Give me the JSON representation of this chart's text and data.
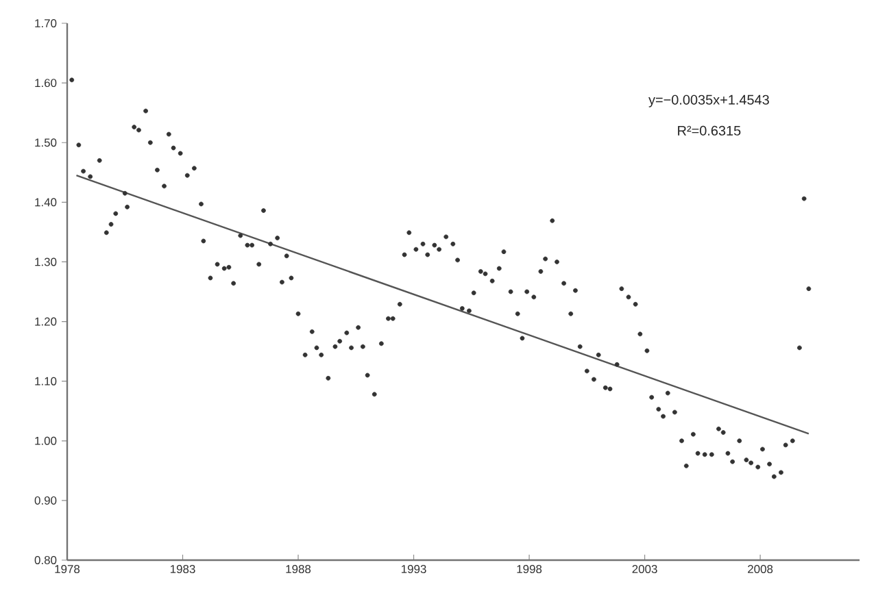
{
  "chart_data": {
    "type": "scatter",
    "xlim": [
      1978,
      2012.3
    ],
    "ylim": [
      0.8,
      1.7
    ],
    "xticks": [
      1978,
      1983,
      1988,
      1993,
      1998,
      2003,
      2008
    ],
    "yticks": [
      {
        "value": 0.8,
        "label": "0.80"
      },
      {
        "value": 0.9,
        "label": "0.90"
      },
      {
        "value": 1.0,
        "label": "1.00"
      },
      {
        "value": 1.1,
        "label": "1.10"
      },
      {
        "value": 1.2,
        "label": "1.20"
      },
      {
        "value": 1.3,
        "label": "1.30"
      },
      {
        "value": 1.4,
        "label": "1.40"
      },
      {
        "value": 1.5,
        "label": "1.50"
      },
      {
        "value": 1.6,
        "label": "1.60"
      },
      {
        "value": 1.7,
        "label": "1.70"
      }
    ],
    "grid": false,
    "annotations": [
      "y=−0.0035x+1.4543",
      "R²=0.6315"
    ],
    "series": [
      {
        "marker": "circle",
        "color": "#333333",
        "x": [
          1978.2,
          1978.5,
          1978.7,
          1979.0,
          1979.4,
          1979.7,
          1979.9,
          1980.1,
          1980.5,
          1980.6,
          1980.9,
          1981.1,
          1981.4,
          1981.6,
          1981.9,
          1982.2,
          1982.4,
          1982.6,
          1982.9,
          1983.2,
          1983.5,
          1983.8,
          1983.9,
          1984.2,
          1984.5,
          1984.8,
          1985.0,
          1985.2,
          1985.5,
          1985.8,
          1986.0,
          1986.3,
          1986.5,
          1986.8,
          1987.1,
          1987.3,
          1987.5,
          1987.7,
          1988.0,
          1988.3,
          1988.6,
          1988.8,
          1989.0,
          1989.3,
          1989.6,
          1989.8,
          1990.1,
          1990.3,
          1990.6,
          1990.8,
          1991.0,
          1991.3,
          1991.6,
          1991.9,
          1992.1,
          1992.4,
          1992.6,
          1992.8,
          1993.1,
          1993.4,
          1993.6,
          1993.9,
          1994.1,
          1994.4,
          1994.7,
          1994.9,
          1995.1,
          1995.4,
          1995.6,
          1995.9,
          1996.1,
          1996.4,
          1996.7,
          1996.9,
          1997.2,
          1997.5,
          1997.7,
          1997.9,
          1998.2,
          1998.5,
          1998.7,
          1999.0,
          1999.2,
          1999.5,
          1999.8,
          2000.0,
          2000.2,
          2000.5,
          2000.8,
          2001.0,
          2001.3,
          2001.5,
          2001.8,
          2002.0,
          2002.3,
          2002.6,
          2002.8,
          2003.1,
          2003.3,
          2003.6,
          2003.8,
          2004.0,
          2004.3,
          2004.6,
          2004.8,
          2005.1,
          2005.3,
          2005.6,
          2005.9,
          2006.2,
          2006.4,
          2006.6,
          2006.8,
          2007.1,
          2007.4,
          2007.6,
          2007.9,
          2008.1,
          2008.4,
          2008.6,
          2008.9,
          2009.1,
          2009.4,
          2009.7,
          2009.9,
          2010.1
        ],
        "values": [
          1.605,
          1.496,
          1.452,
          1.443,
          1.47,
          1.349,
          1.363,
          1.381,
          1.415,
          1.392,
          1.526,
          1.521,
          1.553,
          1.5,
          1.454,
          1.427,
          1.514,
          1.491,
          1.482,
          1.445,
          1.457,
          1.397,
          1.335,
          1.273,
          1.296,
          1.289,
          1.291,
          1.264,
          1.344,
          1.328,
          1.328,
          1.296,
          1.386,
          1.33,
          1.34,
          1.266,
          1.31,
          1.273,
          1.213,
          1.144,
          1.183,
          1.156,
          1.144,
          1.105,
          1.158,
          1.167,
          1.181,
          1.156,
          1.19,
          1.158,
          1.11,
          1.078,
          1.163,
          1.205,
          1.205,
          1.229,
          1.312,
          1.349,
          1.321,
          1.33,
          1.312,
          1.328,
          1.321,
          1.342,
          1.33,
          1.303,
          1.222,
          1.218,
          1.248,
          1.284,
          1.28,
          1.268,
          1.289,
          1.317,
          1.25,
          1.213,
          1.172,
          1.25,
          1.241,
          1.284,
          1.305,
          1.369,
          1.3,
          1.264,
          1.213,
          1.252,
          1.158,
          1.117,
          1.103,
          1.144,
          1.089,
          1.087,
          1.128,
          1.255,
          1.241,
          1.229,
          1.179,
          1.151,
          1.073,
          1.053,
          1.041,
          1.08,
          1.048,
          1.0,
          0.958,
          1.011,
          0.979,
          0.977,
          0.977,
          1.02,
          1.014,
          0.979,
          0.965,
          1.0,
          0.968,
          0.963,
          0.956,
          0.986,
          0.961,
          0.94,
          0.947,
          0.993,
          1.0,
          1.156,
          1.406,
          1.255
        ]
      },
      {
        "type": "line",
        "marker": "none",
        "color": "#555555",
        "x": [
          1978.4,
          2010.1
        ],
        "values": [
          1.445,
          1.012
        ]
      }
    ]
  }
}
